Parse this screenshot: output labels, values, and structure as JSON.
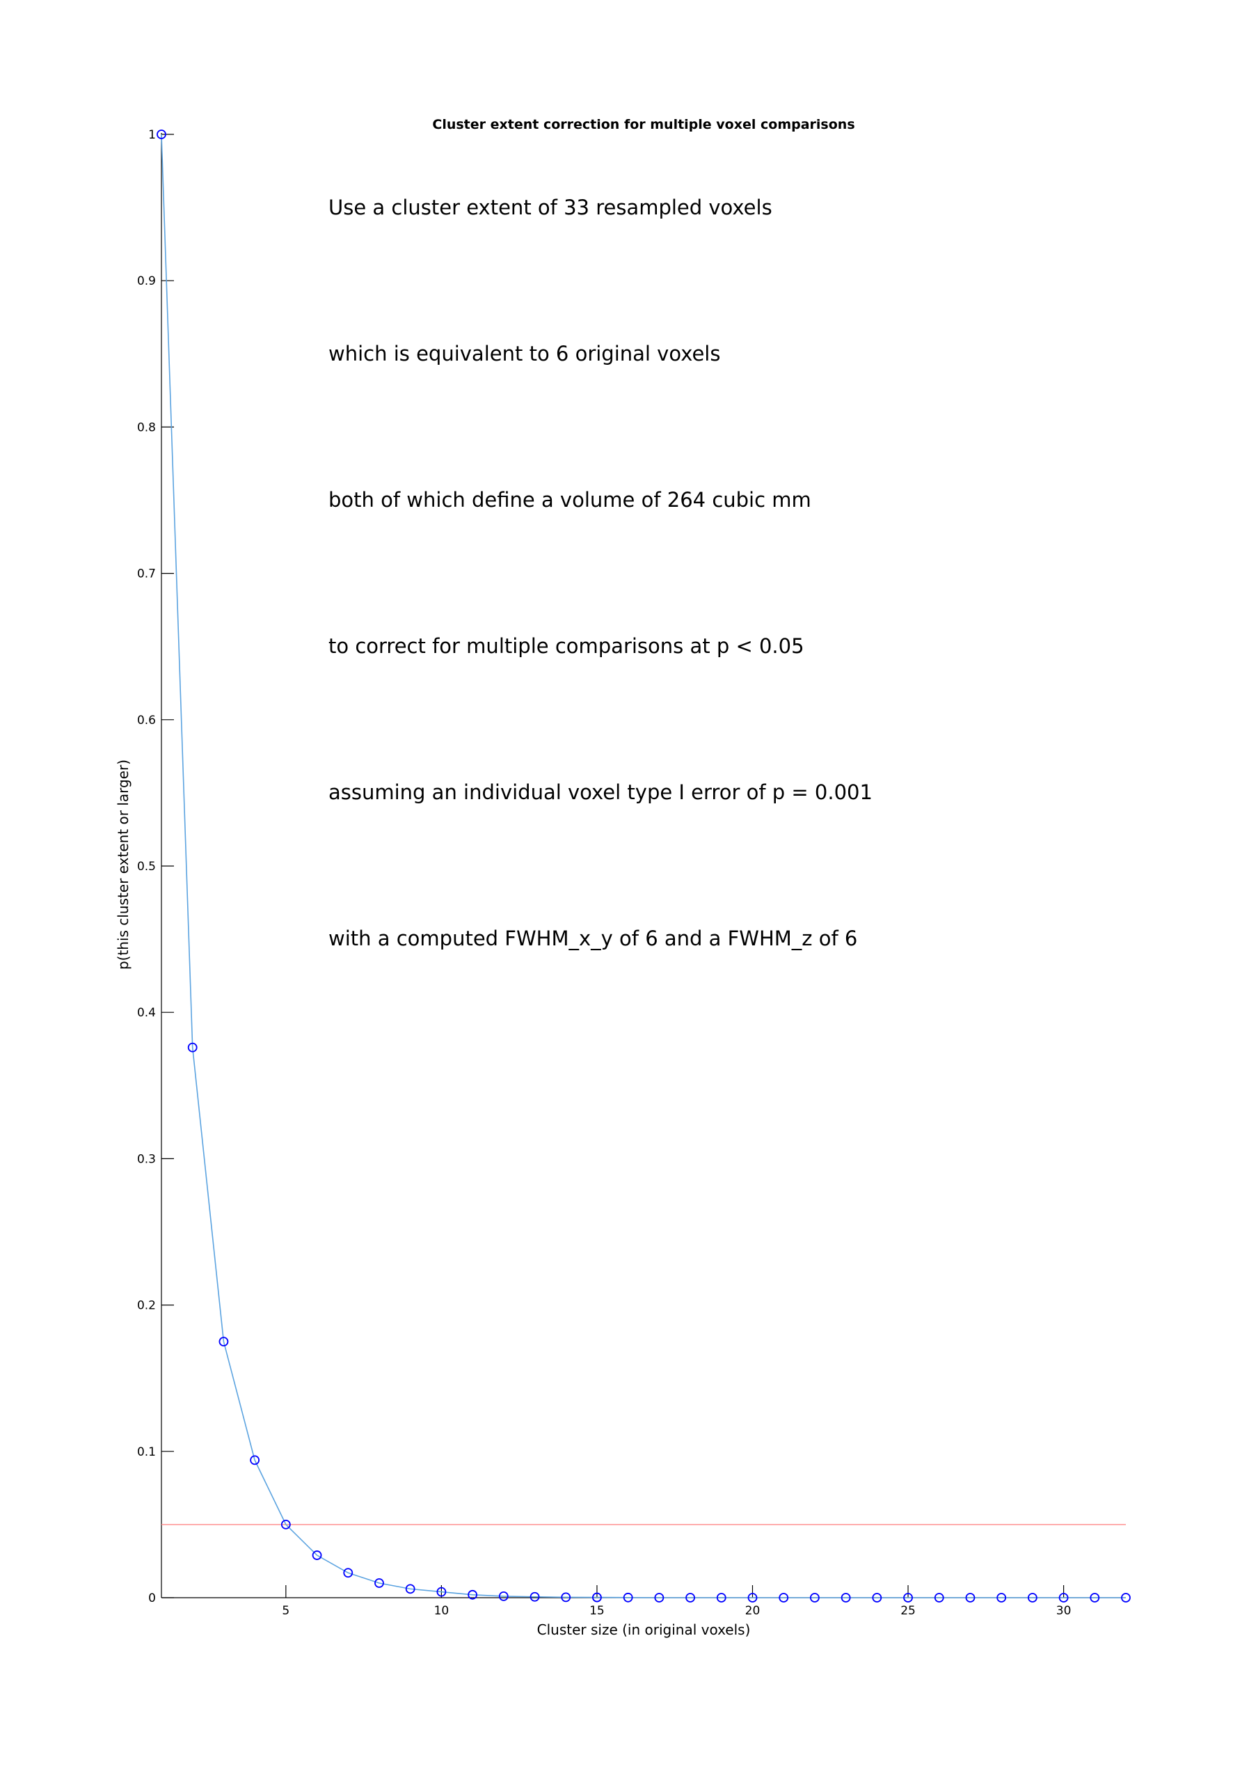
{
  "chart_data": {
    "type": "line",
    "title": "Cluster extent correction for multiple voxel comparisons",
    "xlabel": "Cluster size (in original voxels)",
    "ylabel": "p(this cluster extent or larger)",
    "xlim": [
      1,
      32
    ],
    "ylim": [
      0,
      1
    ],
    "x_ticks": [
      5,
      10,
      15,
      20,
      25,
      30
    ],
    "y_ticks": [
      0,
      0.1,
      0.2,
      0.3,
      0.4,
      0.5,
      0.6,
      0.7,
      0.8,
      0.9,
      1
    ],
    "x_tick_labels": [
      "5",
      "10",
      "15",
      "20",
      "25",
      "30"
    ],
    "y_tick_labels": [
      "0",
      "0.1",
      "0.2",
      "0.3",
      "0.4",
      "0.5",
      "0.6",
      "0.7",
      "0.8",
      "0.9",
      "1"
    ],
    "grid": false,
    "series": [
      {
        "x": [
          1,
          2,
          3,
          4,
          5,
          6,
          7,
          8,
          9,
          10,
          11,
          12,
          13,
          14,
          15,
          16,
          17,
          18,
          19,
          20,
          21,
          22,
          23,
          24,
          25,
          26,
          27,
          28,
          29,
          30,
          31,
          32
        ],
        "y": [
          1.0,
          0.376,
          0.175,
          0.094,
          0.05,
          0.029,
          0.017,
          0.01,
          0.006,
          0.004,
          0.002,
          0.001,
          0.0006,
          0.0003,
          0.0002,
          0.0001,
          0,
          0,
          0,
          0,
          0,
          0,
          0,
          0,
          0,
          0,
          0,
          0,
          0,
          0,
          0,
          0
        ],
        "color": "#5ba3e0",
        "marker": "circle",
        "marker_color": "#0000ff"
      }
    ],
    "threshold_line": {
      "y": 0.05,
      "color": "#ff8888"
    },
    "annotations": [
      "Use a cluster extent of 33 resampled voxels",
      "which is equivalent to 6 original voxels",
      "both of which define a volume of 264 cubic mm",
      "to correct for multiple comparisons at p < 0.05",
      "assuming an individual voxel type I error of p = 0.001",
      "with a computed FWHM_x_y of 6 and a FWHM_z of 6"
    ]
  }
}
